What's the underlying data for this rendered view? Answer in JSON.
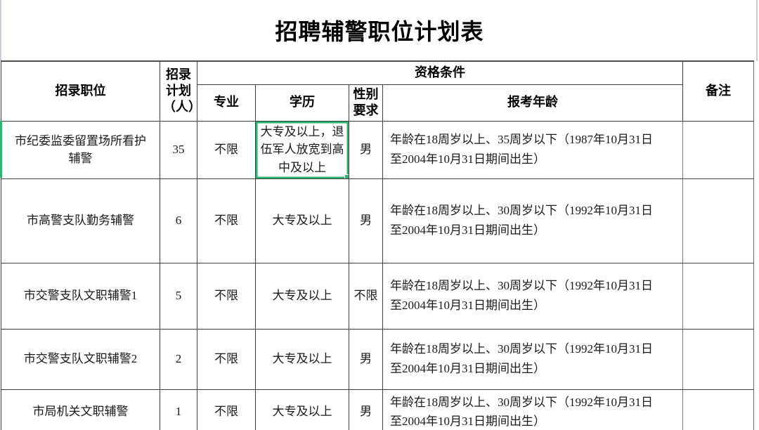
{
  "title": "招聘辅警职位计划表",
  "colors": {
    "selection_green": "#2bb573"
  },
  "table": {
    "headers": {
      "position": "招录职位",
      "plan": "招录计划（人）",
      "qualification": "资格条件",
      "major": "专业",
      "education": "学历",
      "gender": "性别要求",
      "age": "报考年龄",
      "remarks": "备注"
    },
    "rows": [
      {
        "position": "市纪委监委留置场所看护辅警",
        "plan": "35",
        "major": "不限",
        "education": "大专及以上，退伍军人放宽到高中及以上",
        "gender": "男",
        "age": "年龄在18周岁以上、35周岁以下（1987年10月31日\n至2004年10月31日期间出生）",
        "remarks": ""
      },
      {
        "position": "市高警支队勤务辅警",
        "plan": "6",
        "major": "不限",
        "education": "大专及以上",
        "gender": "男",
        "age": "年龄在18周岁以上、30周岁以下（1992年10月31日\n至2004年10月31日期间出生）",
        "remarks": ""
      },
      {
        "position": "市交警支队文职辅警1",
        "plan": "5",
        "major": "不限",
        "education": "大专及以上",
        "gender": "不限",
        "age": "年龄在18周岁以上、30周岁以下（1992年10月31日\n至2004年10月31日期间出生）",
        "remarks": ""
      },
      {
        "position": "市交警支队文职辅警2",
        "plan": "2",
        "major": "不限",
        "education": "大专及以上",
        "gender": "男",
        "age": "年龄在18周岁以上、30周岁以下（1992年10月31日\n至2004年10月31日期间出生）",
        "remarks": ""
      },
      {
        "position": "市局机关文职辅警",
        "plan": "1",
        "major": "不限",
        "education": "大专及以上",
        "gender": "男",
        "age": "年龄在18周岁以上、30周岁以下（1992年10月31日\n至2004年10月31日期间出生）",
        "remarks": ""
      }
    ],
    "selected_cell": {
      "row": 0,
      "column": "education"
    }
  }
}
